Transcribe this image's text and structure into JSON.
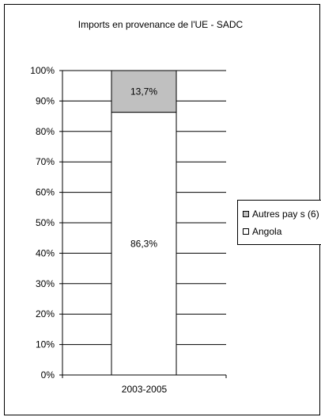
{
  "chart_data": {
    "type": "bar",
    "stacked": true,
    "title": "Imports en provenance de l'UE - SADC",
    "categories": [
      "2003-2005"
    ],
    "series": [
      {
        "name": "Angola",
        "values": [
          86.3
        ],
        "label": "86,3%",
        "color": "#ffffff"
      },
      {
        "name": "Autres pay s (6)",
        "values": [
          13.7
        ],
        "label": "13,7%",
        "color": "#c0c0c0"
      }
    ],
    "ylim": [
      0,
      100
    ],
    "yticks": [
      0,
      10,
      20,
      30,
      40,
      50,
      60,
      70,
      80,
      90,
      100
    ],
    "ytick_labels": [
      "0%",
      "10%",
      "20%",
      "30%",
      "40%",
      "50%",
      "60%",
      "70%",
      "80%",
      "90%",
      "100%"
    ],
    "xlabel": "",
    "ylabel": "",
    "grid": true,
    "legend_position": "right"
  }
}
